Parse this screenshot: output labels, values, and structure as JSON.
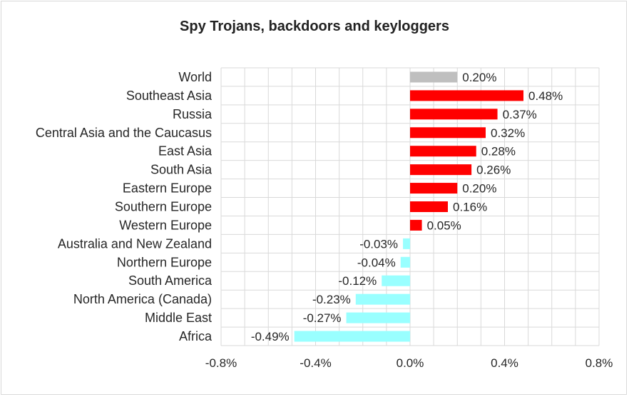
{
  "chart_data": {
    "type": "bar",
    "orientation": "horizontal",
    "title": "Spy Trojans, backdoors and keyloggers",
    "xlabel": "",
    "ylabel": "",
    "xlim": [
      -0.8,
      0.8
    ],
    "xticks": [
      -0.8,
      -0.4,
      0.0,
      0.4,
      0.8
    ],
    "xtick_labels": [
      "-0.8%",
      "-0.4%",
      "0.0%",
      "0.4%",
      "0.8%"
    ],
    "grid": true,
    "legend": "none",
    "colors": {
      "world": "#bfbfbf",
      "positive": "#ff0000",
      "negative": "#99ffff",
      "grid": "#d9d9d9",
      "text": "#262626"
    },
    "categories": [
      "World",
      "Southeast Asia",
      "Russia",
      "Central Asia and the Caucasus",
      "East Asia",
      "South Asia",
      "Eastern Europe",
      "Southern Europe",
      "Western Europe",
      "Australia and New Zealand",
      "Northern Europe",
      "South America",
      "North America (Canada)",
      "Middle East",
      "Africa"
    ],
    "values": [
      0.2,
      0.48,
      0.37,
      0.32,
      0.28,
      0.26,
      0.2,
      0.16,
      0.05,
      -0.03,
      -0.04,
      -0.12,
      -0.23,
      -0.27,
      -0.49
    ],
    "value_labels": [
      "0.20%",
      "0.48%",
      "0.37%",
      "0.32%",
      "0.28%",
      "0.26%",
      "0.20%",
      "0.16%",
      "0.05%",
      "-0.03%",
      "-0.04%",
      "-0.12%",
      "-0.23%",
      "-0.27%",
      "-0.49%"
    ]
  }
}
